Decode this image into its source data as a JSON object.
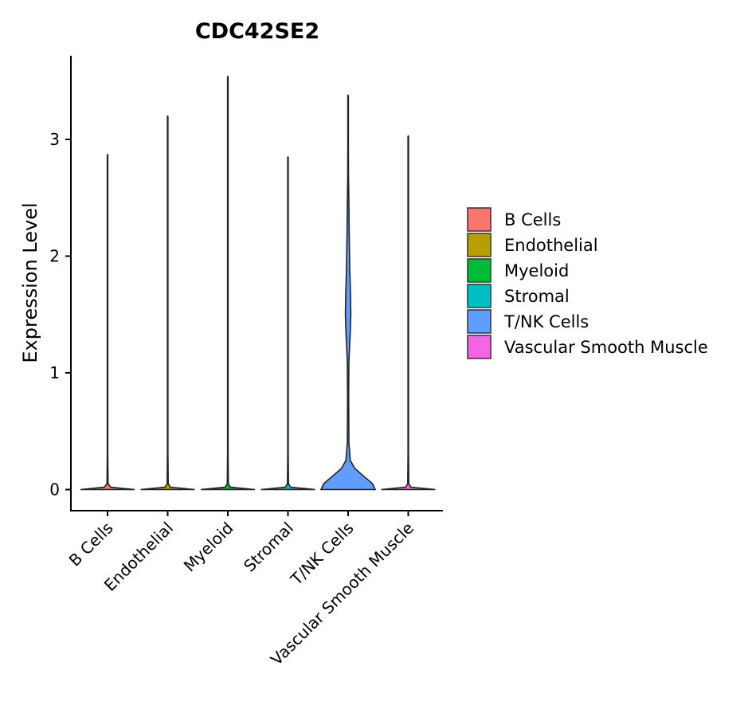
{
  "chart_data": {
    "type": "violin",
    "title": "CDC42SE2",
    "xlabel": "",
    "ylabel": "Expression Level",
    "ylim": [
      -0.18,
      3.72
    ],
    "yticks": [
      0,
      1,
      2,
      3
    ],
    "categories": [
      "B Cells",
      "Endothelial",
      "Myeloid",
      "Stromal",
      "T/NK Cells",
      "Vascular Smooth Muscle"
    ],
    "colors": [
      "#F8766D",
      "#B79F00",
      "#00BA38",
      "#00BFC4",
      "#619CFF",
      "#F564E3"
    ],
    "max_values": [
      2.87,
      3.2,
      3.54,
      2.85,
      3.38,
      3.03
    ],
    "violins": [
      {
        "profile": [
          [
            0,
            1.0
          ],
          [
            0.02,
            0.12
          ],
          [
            0.05,
            0.02
          ],
          [
            0.3,
            0.01
          ],
          [
            2.87,
            0.01
          ]
        ]
      },
      {
        "profile": [
          [
            0,
            1.0
          ],
          [
            0.02,
            0.1
          ],
          [
            0.05,
            0.02
          ],
          [
            0.3,
            0.01
          ],
          [
            3.2,
            0.01
          ]
        ]
      },
      {
        "profile": [
          [
            0,
            1.0
          ],
          [
            0.02,
            0.1
          ],
          [
            0.05,
            0.02
          ],
          [
            0.3,
            0.01
          ],
          [
            3.54,
            0.01
          ]
        ]
      },
      {
        "profile": [
          [
            0,
            1.0
          ],
          [
            0.02,
            0.1
          ],
          [
            0.05,
            0.02
          ],
          [
            0.3,
            0.01
          ],
          [
            2.85,
            0.01
          ]
        ]
      },
      {
        "profile": [
          [
            0,
            1.0
          ],
          [
            0.05,
            0.9
          ],
          [
            0.12,
            0.55
          ],
          [
            0.18,
            0.25
          ],
          [
            0.25,
            0.08
          ],
          [
            0.4,
            0.03
          ],
          [
            0.8,
            0.02
          ],
          [
            1.1,
            0.03
          ],
          [
            1.35,
            0.08
          ],
          [
            1.5,
            0.1
          ],
          [
            1.65,
            0.09
          ],
          [
            1.9,
            0.06
          ],
          [
            2.2,
            0.04
          ],
          [
            2.45,
            0.03
          ],
          [
            2.65,
            0.015
          ],
          [
            3.0,
            0.01
          ],
          [
            3.38,
            0.01
          ]
        ]
      },
      {
        "profile": [
          [
            0,
            1.0
          ],
          [
            0.02,
            0.1
          ],
          [
            0.05,
            0.02
          ],
          [
            0.3,
            0.01
          ],
          [
            3.03,
            0.01
          ]
        ]
      }
    ],
    "legend": {
      "position": "right",
      "entries": [
        "B Cells",
        "Endothelial",
        "Myeloid",
        "Stromal",
        "T/NK Cells",
        "Vascular Smooth Muscle"
      ]
    },
    "grid": false
  }
}
